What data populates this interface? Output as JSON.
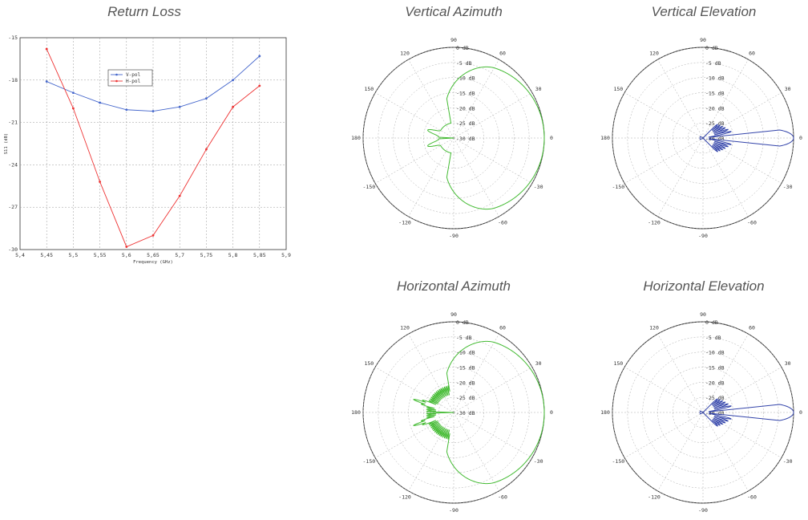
{
  "chart_data": [
    {
      "type": "line",
      "title": "Return Loss",
      "xlabel": "Frequency (GHz)",
      "ylabel": "S11 (dB)",
      "xlim": [
        5.4,
        5.9
      ],
      "ylim": [
        -30,
        -15
      ],
      "grid": true,
      "legend_position": "top-center",
      "x_ticks": [
        "5,4",
        "5,45",
        "5,5",
        "5,55",
        "5,6",
        "5,65",
        "5,7",
        "5,75",
        "5,8",
        "5,85",
        "5,9"
      ],
      "y_ticks": [
        "-15",
        "-18",
        "-21",
        "-24",
        "-27",
        "-30"
      ],
      "x": [
        5.45,
        5.5,
        5.55,
        5.6,
        5.65,
        5.7,
        5.75,
        5.8,
        5.85
      ],
      "series": [
        {
          "name": "V-pol",
          "color": "#4466cc",
          "values": [
            -18.1,
            -18.9,
            -19.6,
            -20.1,
            -20.2,
            -19.9,
            -19.3,
            -18.0,
            -16.3
          ]
        },
        {
          "name": "H-pol",
          "color": "#ee3333",
          "values": [
            -15.8,
            -20.0,
            -25.2,
            -29.8,
            -29.0,
            -26.2,
            -22.9,
            -19.9,
            -18.4
          ]
        }
      ]
    },
    {
      "type": "polar",
      "title": "Vertical Azimuth",
      "color": "#44bb33",
      "pattern": "azimuth",
      "side_lobes": "smooth",
      "radial_labels": [
        "0 dB",
        "-5 dB",
        "-10 dB",
        "-15 dB",
        "-20 dB",
        "-25 dB",
        "-30 dB"
      ],
      "angle_labels": [
        "0",
        "30",
        "60",
        "90",
        "120",
        "150",
        "180",
        "-150",
        "-120",
        "-90",
        "-60",
        "-30"
      ]
    },
    {
      "type": "polar",
      "title": "Vertical Elevation",
      "color": "#3344aa",
      "pattern": "elevation",
      "main_lobe_gain_db": 0,
      "radial_labels": [
        "0 dB",
        "-5 dB",
        "-10 dB",
        "-15 dB",
        "-20 dB",
        "-25 dB",
        "-30 dB"
      ],
      "angle_labels": [
        "0",
        "30",
        "60",
        "90",
        "120",
        "150",
        "180",
        "-150",
        "-120",
        "-90",
        "-60",
        "-30"
      ]
    },
    {
      "type": "polar",
      "title": "Horizontal Azimuth",
      "color": "#44bb33",
      "pattern": "azimuth",
      "side_lobes": "spiky",
      "radial_labels": [
        "0 dB",
        "-5 dB",
        "-10 dB",
        "-15 dB",
        "-20 dB",
        "-25 dB",
        "-30 dB"
      ],
      "angle_labels": [
        "0",
        "30",
        "60",
        "90",
        "120",
        "150",
        "180",
        "-150",
        "-120",
        "-90",
        "-60",
        "-30"
      ]
    },
    {
      "type": "polar",
      "title": "Horizontal Elevation",
      "color": "#3344aa",
      "pattern": "elevation",
      "main_lobe_gain_db": 0,
      "radial_labels": [
        "0 dB",
        "-5 dB",
        "-10 dB",
        "-15 dB",
        "-20 dB",
        "-25 dB",
        "-30 dB"
      ],
      "angle_labels": [
        "0",
        "30",
        "60",
        "90",
        "120",
        "150",
        "180",
        "-150",
        "-120",
        "-90",
        "-60",
        "-30"
      ]
    }
  ]
}
